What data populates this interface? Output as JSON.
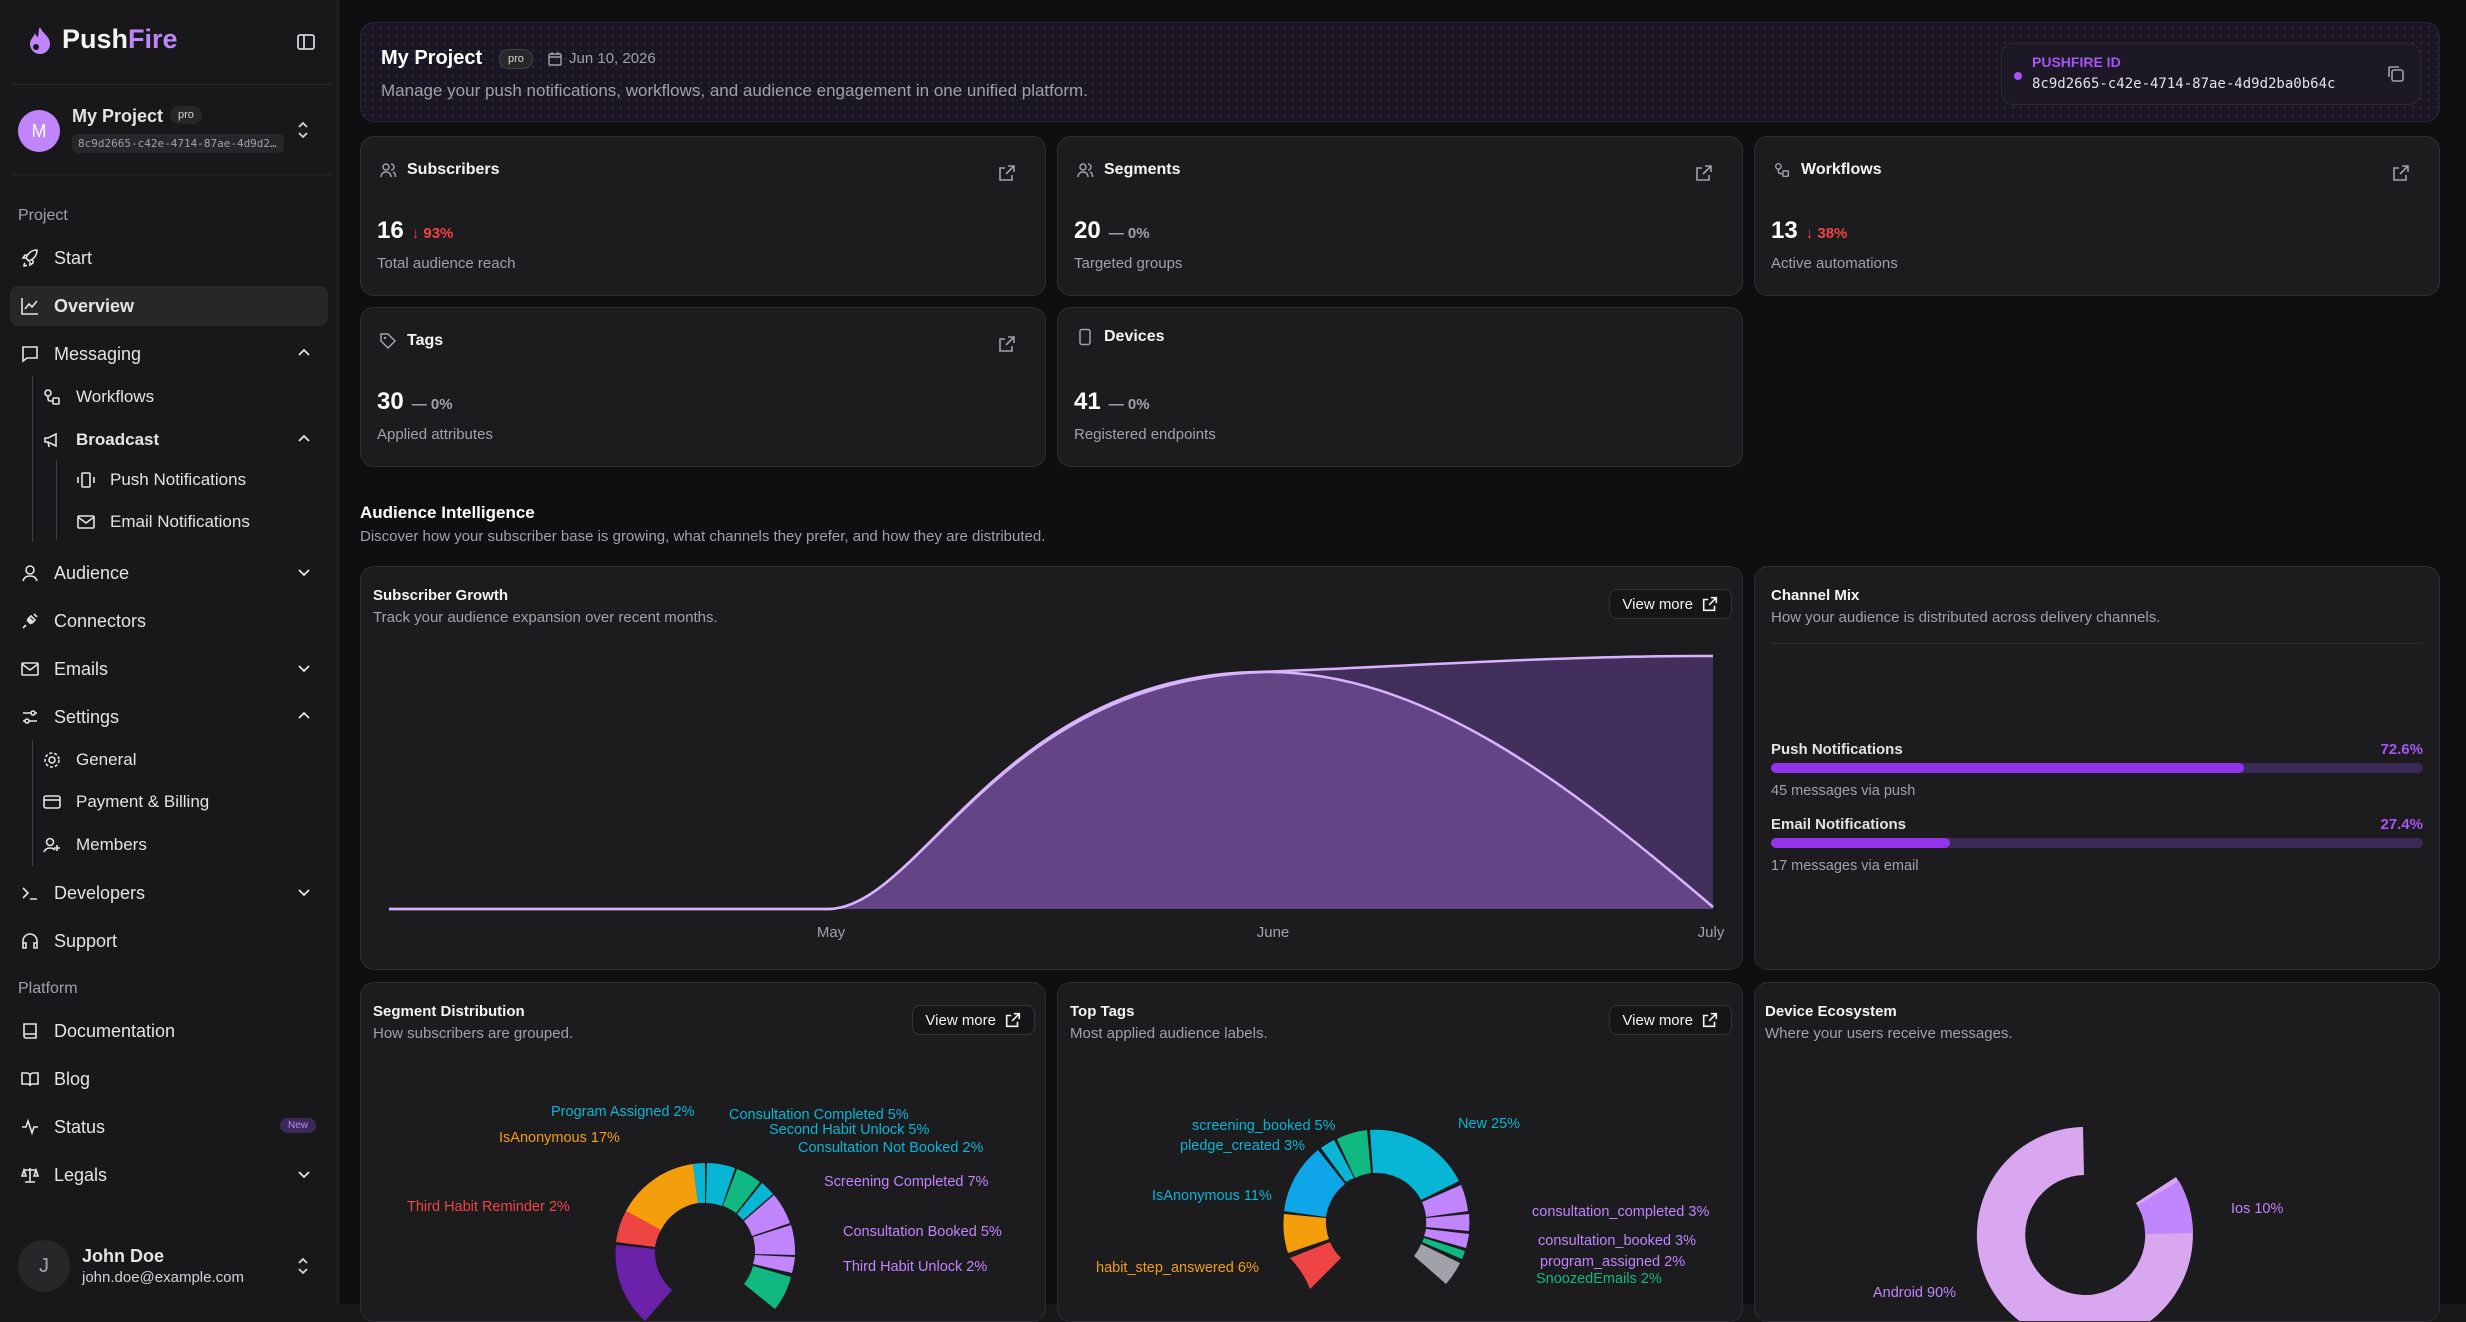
{
  "brand": {
    "push": "Push",
    "fire": "Fire"
  },
  "project": {
    "avatar": "M",
    "name": "My Project",
    "badge": "pro",
    "id_short": "8c9d2665-c42e-4714-87ae-4d9d2…"
  },
  "nav": {
    "section_project": "Project",
    "start": "Start",
    "overview": "Overview",
    "messaging": "Messaging",
    "workflows": "Workflows",
    "broadcast": "Broadcast",
    "push_notifications": "Push Notifications",
    "email_notifications": "Email Notifications",
    "audience": "Audience",
    "connectors": "Connectors",
    "emails": "Emails",
    "settings": "Settings",
    "general": "General",
    "payment_billing": "Payment & Billing",
    "members": "Members",
    "developers": "Developers",
    "support": "Support",
    "section_platform": "Platform",
    "documentation": "Documentation",
    "blog": "Blog",
    "status": "Status",
    "status_badge": "New",
    "legals": "Legals"
  },
  "user": {
    "avatar": "J",
    "name": "John Doe",
    "email": "john.doe@example.com"
  },
  "header": {
    "title": "My Project",
    "badge": "pro",
    "date": "Jun 10, 2026",
    "description": "Manage your push notifications, workflows, and audience engagement in one unified platform.",
    "id_label": "PUSHFIRE ID",
    "id_value": "8c9d2665-c42e-4714-87ae-4d9d2ba0b64c"
  },
  "stats": [
    {
      "title": "Subscribers",
      "value": "16",
      "delta": "93%",
      "trend": "down",
      "sub": "Total audience reach"
    },
    {
      "title": "Segments",
      "value": "20",
      "delta": "0%",
      "trend": "flat",
      "sub": "Targeted groups"
    },
    {
      "title": "Workflows",
      "value": "13",
      "delta": "38%",
      "trend": "down",
      "sub": "Active automations"
    },
    {
      "title": "Tags",
      "value": "30",
      "delta": "0%",
      "trend": "flat",
      "sub": "Applied attributes"
    },
    {
      "title": "Devices",
      "value": "41",
      "delta": "0%",
      "trend": "flat",
      "sub": "Registered endpoints"
    }
  ],
  "intel": {
    "title": "Audience Intelligence",
    "subtitle": "Discover how your subscriber base is growing, what channels they prefer, and how they are distributed."
  },
  "growth": {
    "title": "Subscriber Growth",
    "subtitle": "Track your audience expansion over recent months.",
    "view_more": "View more",
    "x_labels": [
      "May",
      "June",
      "July"
    ]
  },
  "channel": {
    "title": "Channel Mix",
    "subtitle": "How your audience is distributed across delivery channels.",
    "items": [
      {
        "name": "Push Notifications",
        "pct_label": "72.6%",
        "pct": 72.6,
        "sub": "45 messages via push"
      },
      {
        "name": "Email Notifications",
        "pct_label": "27.4%",
        "pct": 27.4,
        "sub": "17 messages via email"
      }
    ]
  },
  "segments": {
    "title": "Segment Distribution",
    "subtitle": "How subscribers are grouped.",
    "view_more": "View more",
    "labels": [
      {
        "t": "Program Assigned 2%",
        "c": "#06b6d4"
      },
      {
        "t": "IsAnonymous 17%",
        "c": "#f59e0b"
      },
      {
        "t": "Consultation Completed 5%",
        "c": "#06b6d4"
      },
      {
        "t": "Second Habit Unlock 5%",
        "c": "#06b6d4"
      },
      {
        "t": "Consultation Not Booked 2%",
        "c": "#06b6d4"
      },
      {
        "t": "Screening Completed 7%",
        "c": "#c084fc"
      },
      {
        "t": "Third Habit Reminder 2%",
        "c": "#ef4444"
      },
      {
        "t": "Consultation Booked 5%",
        "c": "#c084fc"
      },
      {
        "t": "Third Habit Unlock 2%",
        "c": "#c084fc"
      }
    ]
  },
  "tags": {
    "title": "Top Tags",
    "subtitle": "Most applied audience labels.",
    "view_more": "View more",
    "labels": [
      {
        "t": "screening_booked 5%",
        "c": "#06b6d4"
      },
      {
        "t": "New 25%",
        "c": "#06b6d4"
      },
      {
        "t": "pledge_created 3%",
        "c": "#06b6d4"
      },
      {
        "t": "IsAnonymous 11%",
        "c": "#06b6d4"
      },
      {
        "t": "consultation_completed 3%",
        "c": "#c084fc"
      },
      {
        "t": "consultation_booked 3%",
        "c": "#c084fc"
      },
      {
        "t": "habit_step_answered 6%",
        "c": "#f59e0b"
      },
      {
        "t": "program_assigned 2%",
        "c": "#c084fc"
      },
      {
        "t": "SnoozedEmails 2%",
        "c": "#10b981"
      }
    ]
  },
  "devices": {
    "title": "Device Ecosystem",
    "subtitle": "Where your users receive messages.",
    "labels": [
      {
        "t": "Ios 10%",
        "c": "#c084fc"
      },
      {
        "t": "Android 90%",
        "c": "#c084fc"
      }
    ]
  },
  "colors": {
    "accent": "#a855f7",
    "down": "#ef4444",
    "panel": "#1c1c1f"
  }
}
